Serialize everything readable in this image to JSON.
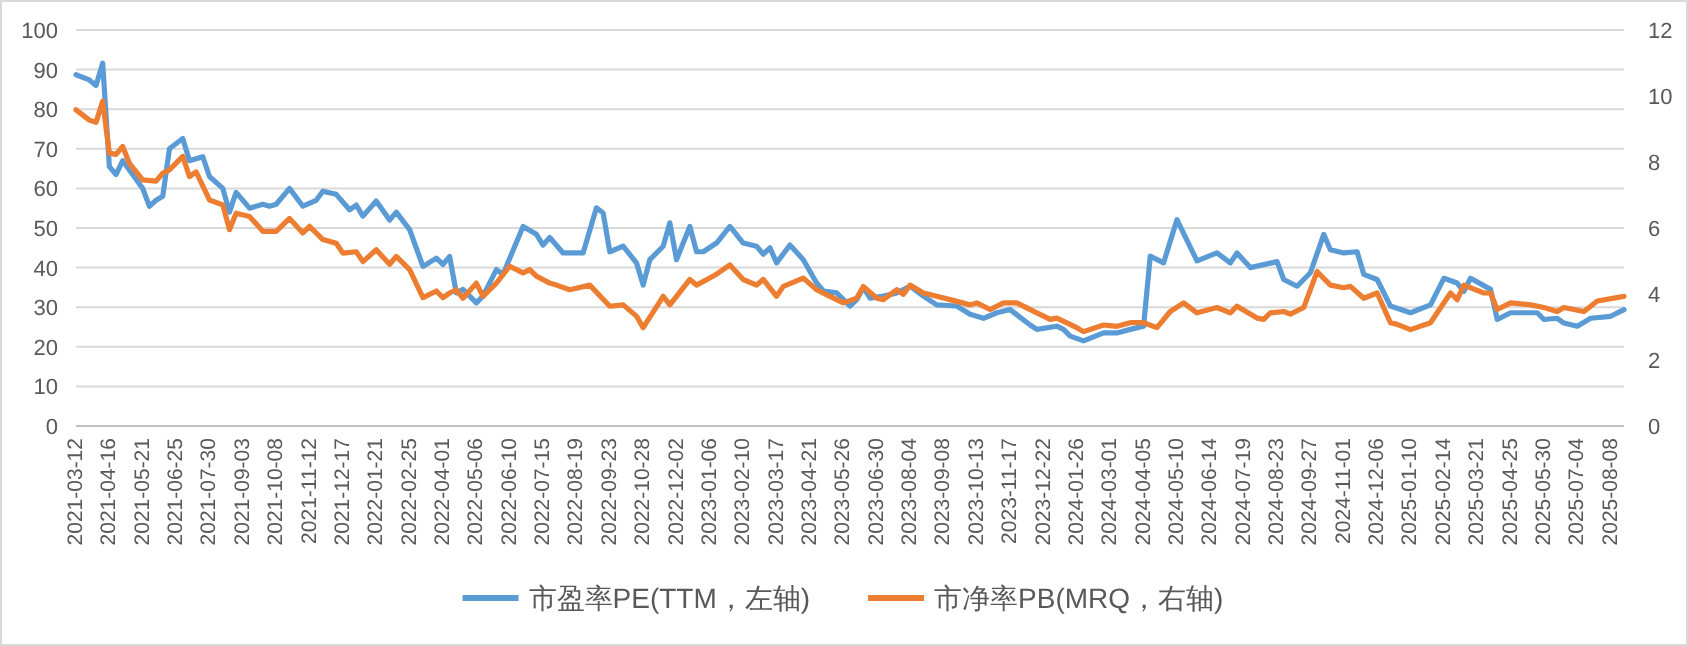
{
  "chart_data": {
    "type": "line",
    "xlim": [
      "2021-03-12",
      "2025-08-22"
    ],
    "xticks": [
      "2021-03-12",
      "2021-04-16",
      "2021-05-21",
      "2021-06-25",
      "2021-07-30",
      "2021-09-03",
      "2021-10-08",
      "2021-11-12",
      "2021-12-17",
      "2022-01-21",
      "2022-02-25",
      "2022-04-01",
      "2022-05-06",
      "2022-06-10",
      "2022-07-15",
      "2022-08-19",
      "2022-09-23",
      "2022-10-28",
      "2022-12-02",
      "2023-01-06",
      "2023-02-10",
      "2023-03-17",
      "2023-04-21",
      "2023-05-26",
      "2023-06-30",
      "2023-08-04",
      "2023-09-08",
      "2023-10-13",
      "2023-11-17",
      "2023-12-22",
      "2024-01-26",
      "2024-03-01",
      "2024-04-05",
      "2024-05-10",
      "2024-06-14",
      "2024-07-19",
      "2024-08-23",
      "2024-09-27",
      "2024-11-01",
      "2024-12-06",
      "2025-01-10",
      "2025-02-14",
      "2025-03-21",
      "2025-04-25",
      "2025-05-30",
      "2025-07-04",
      "2025-08-08"
    ],
    "ylim": [
      0,
      100
    ],
    "yticks": [
      0,
      10,
      20,
      30,
      40,
      50,
      60,
      70,
      80,
      90,
      100
    ],
    "y2lim": [
      0,
      12
    ],
    "y2ticks": [
      0,
      2,
      4,
      6,
      8,
      10,
      12
    ],
    "grid": "y",
    "legend": "bottom",
    "series": [
      {
        "name": "市盈率PE(TTM，左轴)",
        "color": "#5b9bd5",
        "axis": "y",
        "x": [
          "2021-03-12",
          "2021-03-26",
          "2021-04-02",
          "2021-04-09",
          "2021-04-16",
          "2021-04-23",
          "2021-04-30",
          "2021-05-21",
          "2021-05-28",
          "2021-06-04",
          "2021-06-11",
          "2021-06-18",
          "2021-07-02",
          "2021-07-09",
          "2021-07-23",
          "2021-07-30",
          "2021-08-13",
          "2021-08-20",
          "2021-08-27",
          "2021-09-10",
          "2021-09-24",
          "2021-10-01",
          "2021-10-08",
          "2021-10-22",
          "2021-11-05",
          "2021-11-19",
          "2021-11-26",
          "2021-12-10",
          "2021-12-24",
          "2021-12-31",
          "2022-01-07",
          "2022-01-21",
          "2022-02-04",
          "2022-02-11",
          "2022-02-25",
          "2022-03-11",
          "2022-03-25",
          "2022-04-01",
          "2022-04-08",
          "2022-04-15",
          "2022-04-22",
          "2022-05-06",
          "2022-05-13",
          "2022-05-27",
          "2022-06-03",
          "2022-06-24",
          "2022-07-08",
          "2022-07-15",
          "2022-07-22",
          "2022-08-05",
          "2022-08-26",
          "2022-09-09",
          "2022-09-16",
          "2022-09-23",
          "2022-10-07",
          "2022-10-21",
          "2022-10-28",
          "2022-11-04",
          "2022-11-18",
          "2022-11-25",
          "2022-12-02",
          "2022-12-16",
          "2022-12-23",
          "2022-12-30",
          "2023-01-13",
          "2023-01-27",
          "2023-02-10",
          "2023-02-24",
          "2023-03-03",
          "2023-03-10",
          "2023-03-17",
          "2023-03-31",
          "2023-04-14",
          "2023-04-28",
          "2023-05-05",
          "2023-05-19",
          "2023-06-02",
          "2023-06-09",
          "2023-06-16",
          "2023-06-23",
          "2023-07-07",
          "2023-07-21",
          "2023-08-04",
          "2023-08-18",
          "2023-09-01",
          "2023-09-22",
          "2023-10-06",
          "2023-10-20",
          "2023-11-03",
          "2023-11-17",
          "2023-12-08",
          "2023-12-15",
          "2024-01-05",
          "2024-01-12",
          "2024-01-19",
          "2024-02-02",
          "2024-02-23",
          "2024-03-08",
          "2024-03-22",
          "2024-04-05",
          "2024-04-12",
          "2024-04-26",
          "2024-05-10",
          "2024-05-31",
          "2024-06-21",
          "2024-07-05",
          "2024-07-12",
          "2024-07-26",
          "2024-08-23",
          "2024-08-30",
          "2024-09-13",
          "2024-09-27",
          "2024-10-11",
          "2024-10-18",
          "2024-11-01",
          "2024-11-15",
          "2024-11-22",
          "2024-12-06",
          "2024-12-20",
          "2025-01-10",
          "2025-01-31",
          "2025-02-14",
          "2025-02-28",
          "2025-03-07",
          "2025-03-14",
          "2025-04-04",
          "2025-04-11",
          "2025-04-25",
          "2025-05-23",
          "2025-05-30",
          "2025-06-13",
          "2025-06-20",
          "2025-07-04",
          "2025-07-18",
          "2025-08-08",
          "2025-08-22"
        ],
        "values": [
          88.7,
          87.4,
          86,
          91.6,
          65.5,
          63.5,
          67,
          60,
          55.5,
          57,
          58,
          70,
          72.6,
          67,
          68,
          63,
          60,
          54,
          59,
          55,
          56,
          55.5,
          56,
          60,
          55.5,
          57,
          59.3,
          58.5,
          54.6,
          55.8,
          53,
          56.8,
          52,
          54,
          49.6,
          40.3,
          42.4,
          40.8,
          42.8,
          33.6,
          34.5,
          31.1,
          32.8,
          39.5,
          38.3,
          50.4,
          48.4,
          45.7,
          47.6,
          43.7,
          43.7,
          55.1,
          53.8,
          44,
          45.4,
          41.2,
          35.6,
          42,
          45.4,
          51.3,
          42,
          50.4,
          44,
          44,
          46.2,
          50.4,
          46.2,
          45.4,
          43.4,
          45,
          41.2,
          45.7,
          42,
          36.1,
          34.1,
          33.6,
          30.3,
          31.9,
          35,
          32.3,
          32.8,
          33.6,
          35.3,
          32.8,
          30.6,
          30.3,
          28.2,
          27.2,
          28.6,
          29.4,
          25.5,
          24.4,
          25.2,
          24.4,
          22.7,
          21.5,
          23.5,
          23.5,
          24.4,
          25.2,
          42.9,
          41.2,
          52.1,
          41.7,
          43.7,
          41.2,
          43.7,
          40,
          41.5,
          37,
          35.3,
          38.7,
          48.4,
          44.5,
          43.7,
          44,
          38.3,
          37,
          30.3,
          28.6,
          30.6,
          37.3,
          36.1,
          34,
          37.3,
          34.5,
          26.9,
          28.6,
          28.6,
          26.9,
          27.2,
          26,
          25.2,
          27.2,
          27.7,
          29.4
        ]
      },
      {
        "name": "市净率PB(MRQ，右轴)",
        "color": "#ed7d31",
        "axis": "y2",
        "x": [
          "2021-03-12",
          "2021-03-26",
          "2021-04-02",
          "2021-04-09",
          "2021-04-16",
          "2021-04-23",
          "2021-04-30",
          "2021-05-07",
          "2021-05-21",
          "2021-06-04",
          "2021-06-11",
          "2021-06-18",
          "2021-07-02",
          "2021-07-09",
          "2021-07-16",
          "2021-07-30",
          "2021-08-13",
          "2021-08-20",
          "2021-08-27",
          "2021-09-10",
          "2021-09-24",
          "2021-10-08",
          "2021-10-22",
          "2021-11-05",
          "2021-11-12",
          "2021-11-26",
          "2021-12-10",
          "2021-12-17",
          "2021-12-31",
          "2022-01-07",
          "2022-01-21",
          "2022-02-04",
          "2022-02-11",
          "2022-02-25",
          "2022-03-11",
          "2022-03-25",
          "2022-04-01",
          "2022-04-08",
          "2022-04-15",
          "2022-04-22",
          "2022-05-06",
          "2022-05-13",
          "2022-05-27",
          "2022-06-10",
          "2022-06-24",
          "2022-07-01",
          "2022-07-08",
          "2022-07-22",
          "2022-07-29",
          "2022-08-12",
          "2022-09-02",
          "2022-09-23",
          "2022-10-07",
          "2022-10-21",
          "2022-10-28",
          "2022-11-18",
          "2022-11-25",
          "2022-12-16",
          "2022-12-23",
          "2023-01-13",
          "2023-01-27",
          "2023-02-10",
          "2023-02-24",
          "2023-03-03",
          "2023-03-17",
          "2023-03-24",
          "2023-04-14",
          "2023-04-28",
          "2023-05-12",
          "2023-05-26",
          "2023-06-09",
          "2023-06-16",
          "2023-06-30",
          "2023-07-07",
          "2023-07-21",
          "2023-07-28",
          "2023-08-04",
          "2023-08-18",
          "2023-09-01",
          "2023-09-15",
          "2023-10-06",
          "2023-10-13",
          "2023-10-27",
          "2023-11-10",
          "2023-11-24",
          "2023-12-15",
          "2023-12-29",
          "2024-01-05",
          "2024-01-26",
          "2024-02-02",
          "2024-02-23",
          "2024-03-08",
          "2024-03-22",
          "2024-04-05",
          "2024-04-19",
          "2024-05-03",
          "2024-05-17",
          "2024-05-31",
          "2024-06-21",
          "2024-07-05",
          "2024-07-12",
          "2024-08-02",
          "2024-08-09",
          "2024-08-16",
          "2024-08-30",
          "2024-09-06",
          "2024-09-20",
          "2024-10-04",
          "2024-10-18",
          "2024-11-01",
          "2024-11-08",
          "2024-11-22",
          "2024-12-06",
          "2024-12-20",
          "2024-12-27",
          "2025-01-10",
          "2025-01-31",
          "2025-02-21",
          "2025-02-28",
          "2025-03-07",
          "2025-03-28",
          "2025-04-04",
          "2025-04-11",
          "2025-04-25",
          "2025-05-16",
          "2025-05-30",
          "2025-06-13",
          "2025-06-20",
          "2025-07-11",
          "2025-07-25",
          "2025-08-22"
        ],
        "values": [
          9.58,
          9.27,
          9.2,
          9.84,
          8.27,
          8.23,
          8.47,
          7.96,
          7.46,
          7.42,
          7.66,
          7.76,
          8.17,
          7.56,
          7.7,
          6.85,
          6.7,
          5.95,
          6.45,
          6.35,
          5.9,
          5.9,
          6.29,
          5.85,
          6.05,
          5.65,
          5.54,
          5.24,
          5.28,
          4.98,
          5.34,
          4.9,
          5.14,
          4.74,
          3.89,
          4.09,
          3.89,
          4.03,
          4.13,
          3.87,
          4.33,
          3.93,
          4.33,
          4.84,
          4.64,
          4.74,
          4.54,
          4.33,
          4.27,
          4.13,
          4.27,
          3.63,
          3.67,
          3.33,
          2.98,
          3.93,
          3.67,
          4.44,
          4.27,
          4.6,
          4.88,
          4.44,
          4.27,
          4.44,
          3.93,
          4.23,
          4.48,
          4.13,
          3.93,
          3.73,
          3.87,
          4.23,
          3.87,
          3.83,
          4.13,
          3.99,
          4.27,
          4.03,
          3.93,
          3.83,
          3.67,
          3.73,
          3.53,
          3.73,
          3.73,
          3.43,
          3.23,
          3.27,
          2.98,
          2.86,
          3.06,
          3.02,
          3.13,
          3.13,
          2.98,
          3.47,
          3.73,
          3.43,
          3.59,
          3.43,
          3.63,
          3.27,
          3.23,
          3.43,
          3.47,
          3.39,
          3.59,
          4.68,
          4.27,
          4.19,
          4.23,
          3.87,
          4.03,
          3.13,
          3.08,
          2.92,
          3.13,
          4.03,
          3.83,
          4.27,
          4.03,
          4.03,
          3.53,
          3.73,
          3.67,
          3.59,
          3.47,
          3.59,
          3.47,
          3.79,
          3.93
        ]
      }
    ]
  }
}
